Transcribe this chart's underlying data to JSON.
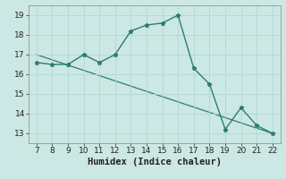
{
  "x": [
    7,
    8,
    9,
    10,
    11,
    12,
    13,
    14,
    15,
    16,
    17,
    18,
    19,
    20,
    21,
    22
  ],
  "y": [
    16.6,
    16.5,
    16.5,
    17.0,
    16.6,
    17.0,
    18.2,
    18.5,
    18.6,
    19.0,
    16.3,
    15.5,
    13.2,
    14.3,
    13.4,
    13.0
  ],
  "trend_x": [
    7,
    22
  ],
  "trend_y": [
    17.0,
    13.0
  ],
  "line_color": "#2d7d6d",
  "marker": "*",
  "marker_size": 3.5,
  "background_color": "#cce8e4",
  "grid_color": "#b0d8d2",
  "xlabel": "Humidex (Indice chaleur)",
  "xlim": [
    6.5,
    22.5
  ],
  "ylim": [
    12.5,
    19.5
  ],
  "xticks": [
    7,
    8,
    9,
    10,
    11,
    12,
    13,
    14,
    15,
    16,
    17,
    18,
    19,
    20,
    21,
    22
  ],
  "yticks": [
    13,
    14,
    15,
    16,
    17,
    18,
    19
  ],
  "tick_fontsize": 6.5,
  "xlabel_fontsize": 7.5,
  "linewidth": 1.0
}
